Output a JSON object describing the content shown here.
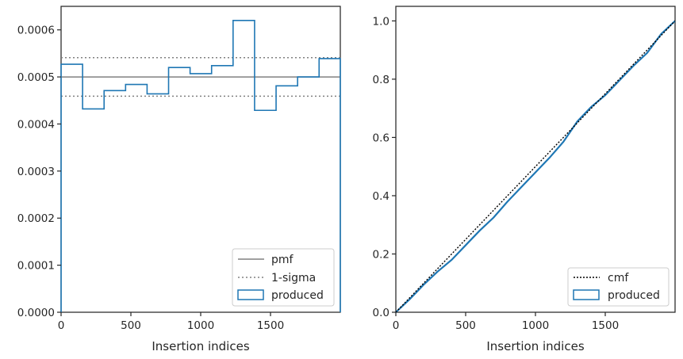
{
  "chart_data": [
    {
      "type": "histogram-step",
      "xlabel": "Insertion indices",
      "ylabel": "",
      "xlim": [
        0,
        2000
      ],
      "ylim": [
        0,
        0.00065
      ],
      "xticks": [
        0,
        500,
        1000,
        1500
      ],
      "xtick_labels": [
        "0",
        "500",
        "1000",
        "1500"
      ],
      "yticks": [
        0,
        0.0001,
        0.0002,
        0.0003,
        0.0004,
        0.0005,
        0.0006
      ],
      "ytick_labels": [
        "0.0000",
        "0.0001",
        "0.0002",
        "0.0003",
        "0.0004",
        "0.0005",
        "0.0006"
      ],
      "bin_edges": [
        0,
        154,
        308,
        462,
        616,
        770,
        924,
        1078,
        1232,
        1386,
        1540,
        1694,
        1848,
        2000
      ],
      "produced": [
        0.000527,
        0.000432,
        0.000471,
        0.000484,
        0.000464,
        0.00052,
        0.000507,
        0.000524,
        0.00062,
        0.000429,
        0.000481,
        0.0005,
        0.000539
      ],
      "pmf": 0.0005,
      "sigma_band": [
        0.000459,
        0.000541
      ],
      "legend": {
        "position": "lower-right",
        "entries": [
          "pmf",
          "1-sigma",
          "produced"
        ]
      },
      "colors": {
        "pmf": "#808080",
        "sigma": "#808080",
        "produced": "#1f77b4"
      }
    },
    {
      "type": "line",
      "xlabel": "Insertion indices",
      "ylabel": "",
      "xlim": [
        0,
        2000
      ],
      "ylim": [
        0,
        1.05
      ],
      "xticks": [
        0,
        500,
        1000,
        1500
      ],
      "xtick_labels": [
        "0",
        "500",
        "1000",
        "1500"
      ],
      "yticks": [
        0,
        0.2,
        0.4,
        0.6,
        0.8,
        1.0
      ],
      "ytick_labels": [
        "0.0",
        "0.2",
        "0.4",
        "0.6",
        "0.8",
        "1.0"
      ],
      "cmf": {
        "x": [
          0,
          2000
        ],
        "y": [
          0,
          1.0
        ]
      },
      "produced": {
        "x": [
          0,
          100,
          200,
          300,
          400,
          500,
          600,
          700,
          800,
          900,
          1000,
          1100,
          1200,
          1300,
          1400,
          1500,
          1600,
          1700,
          1800,
          1900,
          2000
        ],
        "y": [
          0,
          0.045,
          0.095,
          0.14,
          0.18,
          0.23,
          0.28,
          0.325,
          0.38,
          0.43,
          0.48,
          0.53,
          0.585,
          0.655,
          0.705,
          0.745,
          0.795,
          0.845,
          0.89,
          0.955,
          1.0
        ]
      },
      "legend": {
        "position": "lower-right",
        "entries": [
          "cmf",
          "produced"
        ]
      },
      "colors": {
        "cmf": "#000000",
        "produced": "#1f77b4"
      }
    }
  ]
}
